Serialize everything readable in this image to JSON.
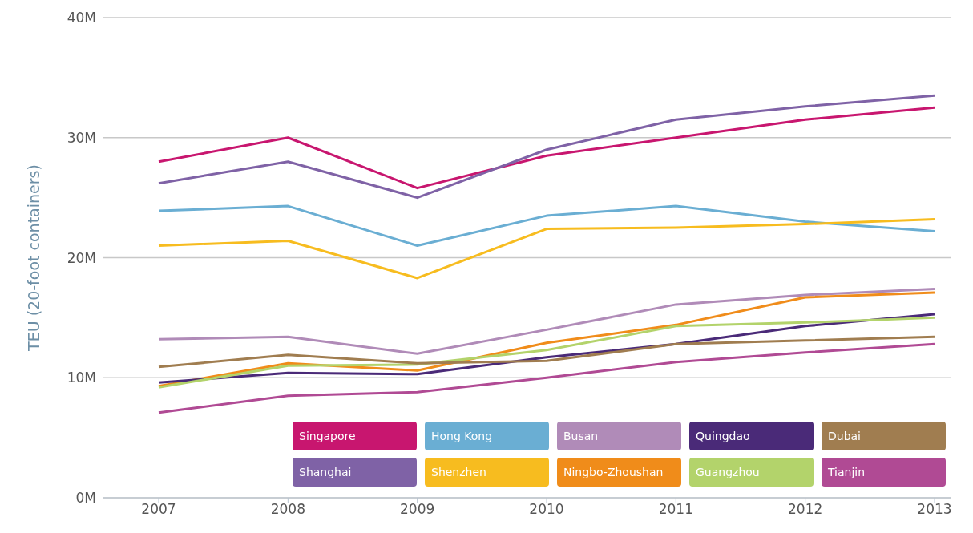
{
  "chart_data": {
    "type": "line",
    "ylabel": "TEU (20-foot containers)",
    "categories": [
      "2007",
      "2008",
      "2009",
      "2010",
      "2011",
      "2012",
      "2013"
    ],
    "ylim": [
      0,
      40
    ],
    "yticks": [
      {
        "value": 0,
        "label": "0M"
      },
      {
        "value": 10,
        "label": "10M"
      },
      {
        "value": 20,
        "label": "20M"
      },
      {
        "value": 30,
        "label": "30M"
      },
      {
        "value": 40,
        "label": "40M"
      }
    ],
    "grid": "y",
    "legend": "bottom",
    "marker": "none",
    "series": [
      {
        "name": "Singapore",
        "color": "#c8166f",
        "values": [
          28.0,
          30.0,
          25.8,
          28.5,
          30.0,
          31.5,
          32.5
        ]
      },
      {
        "name": "Shanghai",
        "color": "#7f62a6",
        "values": [
          26.2,
          28.0,
          25.0,
          29.0,
          31.5,
          32.6,
          33.5
        ]
      },
      {
        "name": "Hong Kong",
        "color": "#6aaed3",
        "values": [
          23.9,
          24.3,
          21.0,
          23.5,
          24.3,
          23.0,
          22.2
        ]
      },
      {
        "name": "Shenzhen",
        "color": "#f7bc1f",
        "values": [
          21.0,
          21.4,
          18.3,
          22.4,
          22.5,
          22.8,
          23.2
        ]
      },
      {
        "name": "Busan",
        "color": "#b08bb8",
        "values": [
          13.2,
          13.4,
          12.0,
          14.0,
          16.1,
          16.9,
          17.4
        ]
      },
      {
        "name": "Ningbo-Zhoushan",
        "color": "#f08c1a",
        "values": [
          9.3,
          11.2,
          10.6,
          12.9,
          14.4,
          16.7,
          17.1
        ]
      },
      {
        "name": "Quingdao",
        "color": "#4a2a78",
        "values": [
          9.6,
          10.4,
          10.3,
          11.7,
          12.8,
          14.3,
          15.3
        ]
      },
      {
        "name": "Guangzhou",
        "color": "#b3d36b",
        "values": [
          9.2,
          11.0,
          11.1,
          12.3,
          14.3,
          14.6,
          15.0
        ]
      },
      {
        "name": "Dubai",
        "color": "#a07d50",
        "values": [
          10.9,
          11.9,
          11.2,
          11.4,
          12.8,
          13.1,
          13.4
        ]
      },
      {
        "name": "Tianjin",
        "color": "#b04a94",
        "values": [
          7.1,
          8.5,
          8.8,
          10.0,
          11.3,
          12.1,
          12.8
        ]
      }
    ]
  }
}
